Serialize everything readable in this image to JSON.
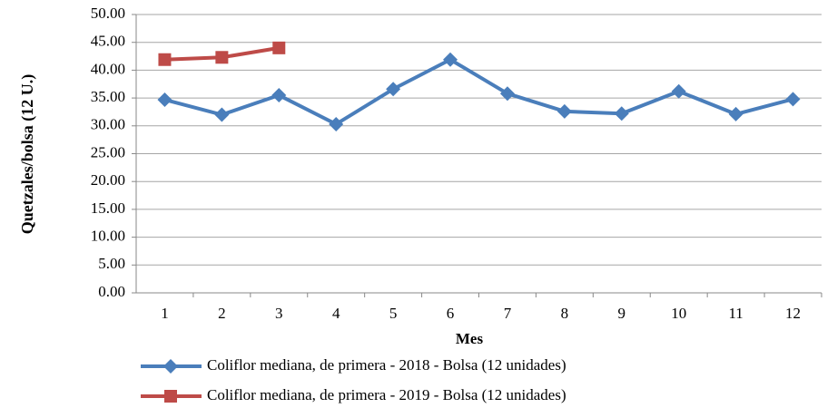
{
  "chart_data": {
    "type": "line",
    "x_label": "Mes",
    "y_label": "Quetzales/bolsa (12 U.)",
    "categories": [
      "1",
      "2",
      "3",
      "4",
      "5",
      "6",
      "7",
      "8",
      "9",
      "10",
      "11",
      "12"
    ],
    "series": [
      {
        "name": "Coliflor mediana, de primera - 2018 - Bolsa (12 unidades)",
        "color": "#4a7ebb",
        "marker": "diamond",
        "values": [
          34.7,
          32.0,
          35.5,
          30.3,
          36.6,
          41.9,
          35.8,
          32.6,
          32.2,
          36.2,
          32.1,
          34.8
        ]
      },
      {
        "name": "Coliflor mediana, de primera - 2019 - Bolsa (12 unidades)",
        "color": "#be4b48",
        "marker": "square",
        "values": [
          41.9,
          42.3,
          44.0,
          null,
          null,
          null,
          null,
          null,
          null,
          null,
          null,
          null
        ]
      }
    ],
    "ylim": [
      0,
      50
    ],
    "yticks": [
      {
        "value": 0,
        "label": "0.00"
      },
      {
        "value": 5,
        "label": "5.00"
      },
      {
        "value": 10,
        "label": "10.00"
      },
      {
        "value": 15,
        "label": "15.00"
      },
      {
        "value": 20,
        "label": "20.00"
      },
      {
        "value": 25,
        "label": "25.00"
      },
      {
        "value": 30,
        "label": "30.00"
      },
      {
        "value": 35,
        "label": "35.00"
      },
      {
        "value": 40,
        "label": "40.00"
      },
      {
        "value": 45,
        "label": "45.00"
      },
      {
        "value": 50,
        "label": "50.00"
      }
    ],
    "grid": true
  }
}
